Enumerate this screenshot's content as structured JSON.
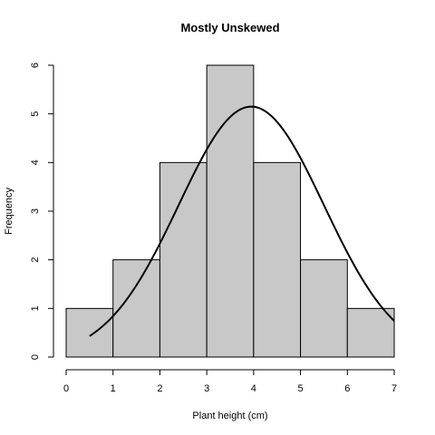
{
  "chart_data": {
    "type": "bar",
    "title": "Mostly Unskewed",
    "xlabel": "Plant height (cm)",
    "ylabel": "Frequency",
    "bins": [
      {
        "x0": 0,
        "x1": 1,
        "count": 1
      },
      {
        "x0": 1,
        "x1": 2,
        "count": 2
      },
      {
        "x0": 2,
        "x1": 3,
        "count": 4
      },
      {
        "x0": 3,
        "x1": 4,
        "count": 6
      },
      {
        "x0": 4,
        "x1": 5,
        "count": 4
      },
      {
        "x0": 5,
        "x1": 6,
        "count": 2
      },
      {
        "x0": 6,
        "x1": 7,
        "count": 1
      }
    ],
    "xlim": [
      0,
      7
    ],
    "ylim": [
      0,
      6
    ],
    "x_ticks": [
      0,
      1,
      2,
      3,
      4,
      5,
      6,
      7
    ],
    "y_ticks": [
      0,
      1,
      2,
      3,
      4,
      5,
      6
    ],
    "curve": {
      "type": "normal-density",
      "mean": 3.95,
      "sd": 1.55,
      "peak": 5.15,
      "x_range": [
        0.5,
        7
      ]
    },
    "grid": false,
    "colors": {
      "bar_fill": "#c8c8c8",
      "bar_stroke": "#000000",
      "curve": "#000000"
    }
  }
}
